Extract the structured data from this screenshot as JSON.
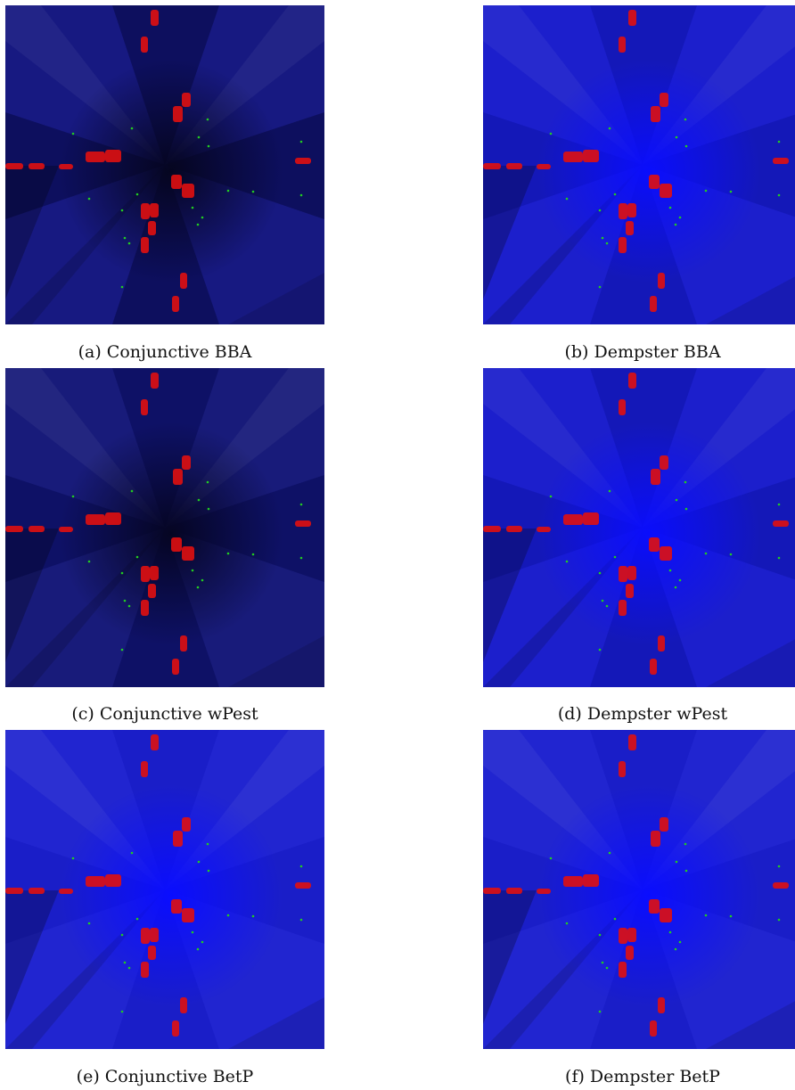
{
  "figures": [
    {
      "id": "a",
      "caption": "(a) Conjunctive BBA",
      "palette": {
        "base": "#0d0f5e",
        "center": "#05051f",
        "bright": "#2b2fc4"
      }
    },
    {
      "id": "b",
      "caption": "(b) Dempster BBA",
      "palette": {
        "base": "#1418b8",
        "center": "#0a0dfc",
        "bright": "#2a2ef0"
      }
    },
    {
      "id": "c",
      "caption": "(c) Conjunctive wPest",
      "palette": {
        "base": "#0e1166",
        "center": "#050522",
        "bright": "#2a2da0"
      }
    },
    {
      "id": "d",
      "caption": "(d) Dempster wPest",
      "palette": {
        "base": "#1418b8",
        "center": "#0a0dfc",
        "bright": "#2a2ef0"
      }
    },
    {
      "id": "e",
      "caption": "(e) Conjunctive BetP",
      "palette": {
        "base": "#1a1ec8",
        "center": "#0a0dff",
        "bright": "#3034e0"
      }
    },
    {
      "id": "f",
      "caption": "(f) Dempster BetP",
      "palette": {
        "base": "#1a1ec8",
        "center": "#0a0dff",
        "bright": "#3034e0"
      }
    }
  ],
  "colors": {
    "obstacle": "#e01010",
    "point": "#22cc22"
  }
}
